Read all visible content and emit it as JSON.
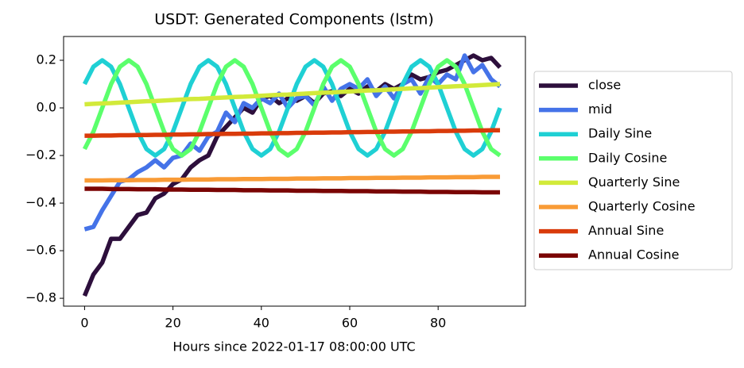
{
  "chart_data": {
    "type": "line",
    "title": "USDT: Generated Components (lstm)",
    "x_label": "Hours since 2022-01-17 08:00:00 UTC",
    "x": [
      0,
      2,
      4,
      6,
      8,
      10,
      12,
      14,
      16,
      18,
      20,
      22,
      24,
      26,
      28,
      30,
      32,
      34,
      36,
      38,
      40,
      42,
      44,
      46,
      48,
      50,
      52,
      54,
      56,
      58,
      60,
      62,
      64,
      66,
      68,
      70,
      72,
      74,
      76,
      78,
      80,
      82,
      84,
      86,
      88,
      90,
      92,
      94
    ],
    "xlim": [
      -4.75,
      99.75
    ],
    "xticks": [
      0,
      20,
      40,
      60,
      80
    ],
    "ylim": [
      -0.833,
      0.3
    ],
    "yticks": [
      {
        "value": -0.8,
        "label": "−0.8"
      },
      {
        "value": -0.6,
        "label": "−0.6"
      },
      {
        "value": -0.4,
        "label": "−0.4"
      },
      {
        "value": -0.2,
        "label": "−0.2"
      },
      {
        "value": 0,
        "label": "0.0"
      },
      0.2
    ],
    "legend": "outside-right",
    "series": [
      {
        "name": "close",
        "color": "#2d0f3c",
        "values": [
          -0.79,
          -0.7,
          -0.65,
          -0.55,
          -0.55,
          -0.5,
          -0.45,
          -0.44,
          -0.38,
          -0.36,
          -0.32,
          -0.3,
          -0.25,
          -0.22,
          -0.2,
          -0.12,
          -0.08,
          -0.04,
          0.0,
          -0.02,
          0.04,
          0.05,
          0.02,
          0.04,
          0.03,
          0.05,
          0.02,
          0.06,
          0.07,
          0.05,
          0.08,
          0.06,
          0.09,
          0.07,
          0.1,
          0.08,
          0.1,
          0.14,
          0.12,
          0.13,
          0.15,
          0.16,
          0.18,
          0.2,
          0.22,
          0.2,
          0.21,
          0.17
        ]
      },
      {
        "name": "mid",
        "color": "#4573e8",
        "values": [
          -0.51,
          -0.5,
          -0.43,
          -0.37,
          -0.31,
          -0.3,
          -0.27,
          -0.25,
          -0.22,
          -0.25,
          -0.21,
          -0.2,
          -0.15,
          -0.18,
          -0.12,
          -0.1,
          -0.02,
          -0.06,
          0.02,
          0.0,
          0.04,
          0.02,
          0.06,
          0.0,
          0.04,
          0.05,
          0.01,
          0.09,
          0.03,
          0.08,
          0.1,
          0.08,
          0.12,
          0.05,
          0.09,
          0.04,
          0.1,
          0.12,
          0.06,
          0.13,
          0.1,
          0.14,
          0.12,
          0.22,
          0.15,
          0.18,
          0.12,
          0.09
        ]
      },
      {
        "name": "Daily Sine",
        "color": "#1fd0d4",
        "values": [
          0.1,
          0.173,
          0.2,
          0.173,
          0.1,
          0,
          -0.1,
          -0.173,
          -0.2,
          -0.173,
          -0.1,
          0,
          0.1,
          0.173,
          0.2,
          0.173,
          0.1,
          0,
          -0.1,
          -0.173,
          -0.2,
          -0.173,
          -0.1,
          0,
          0.1,
          0.173,
          0.2,
          0.173,
          0.1,
          0,
          -0.1,
          -0.173,
          -0.2,
          -0.173,
          -0.1,
          0,
          0.1,
          0.173,
          0.2,
          0.173,
          0.1,
          0,
          -0.1,
          -0.173,
          -0.2,
          -0.173,
          -0.1,
          0
        ]
      },
      {
        "name": "Daily Cosine",
        "color": "#5bff6c",
        "values": [
          -0.173,
          -0.1,
          0,
          0.1,
          0.173,
          0.2,
          0.173,
          0.1,
          0,
          -0.1,
          -0.173,
          -0.2,
          -0.173,
          -0.1,
          0,
          0.1,
          0.173,
          0.2,
          0.173,
          0.1,
          0,
          -0.1,
          -0.173,
          -0.2,
          -0.173,
          -0.1,
          0,
          0.1,
          0.173,
          0.2,
          0.173,
          0.1,
          0,
          -0.1,
          -0.173,
          -0.2,
          -0.173,
          -0.1,
          0,
          0.1,
          0.173,
          0.2,
          0.173,
          0.1,
          0,
          -0.1,
          -0.173,
          -0.2
        ]
      },
      {
        "name": "Quarterly Sine",
        "color": "#d2ea3a",
        "values": [
          0.015,
          0.017,
          0.019,
          0.02,
          0.022,
          0.024,
          0.026,
          0.028,
          0.029,
          0.031,
          0.033,
          0.035,
          0.037,
          0.038,
          0.04,
          0.042,
          0.044,
          0.046,
          0.047,
          0.049,
          0.051,
          0.053,
          0.055,
          0.056,
          0.058,
          0.06,
          0.062,
          0.064,
          0.065,
          0.067,
          0.069,
          0.071,
          0.073,
          0.074,
          0.076,
          0.078,
          0.08,
          0.082,
          0.083,
          0.085,
          0.087,
          0.089,
          0.091,
          0.092,
          0.094,
          0.096,
          0.098,
          0.1
        ]
      },
      {
        "name": "Quarterly Cosine",
        "color": "#f99b36",
        "values": [
          -0.305,
          -0.305,
          -0.305,
          -0.304,
          -0.304,
          -0.304,
          -0.303,
          -0.303,
          -0.303,
          -0.302,
          -0.302,
          -0.302,
          -0.301,
          -0.301,
          -0.301,
          -0.3,
          -0.3,
          -0.3,
          -0.299,
          -0.299,
          -0.299,
          -0.298,
          -0.298,
          -0.298,
          -0.297,
          -0.297,
          -0.297,
          -0.296,
          -0.296,
          -0.296,
          -0.295,
          -0.295,
          -0.295,
          -0.294,
          -0.294,
          -0.294,
          -0.293,
          -0.293,
          -0.293,
          -0.292,
          -0.292,
          -0.292,
          -0.291,
          -0.291,
          -0.291,
          -0.29,
          -0.29,
          -0.29
        ]
      },
      {
        "name": "Annual Sine",
        "color": "#d93b0b",
        "values": [
          -0.117,
          -0.117,
          -0.116,
          -0.116,
          -0.115,
          -0.115,
          -0.114,
          -0.114,
          -0.113,
          -0.113,
          -0.112,
          -0.112,
          -0.111,
          -0.111,
          -0.11,
          -0.11,
          -0.109,
          -0.109,
          -0.108,
          -0.108,
          -0.107,
          -0.107,
          -0.106,
          -0.106,
          -0.105,
          -0.105,
          -0.104,
          -0.104,
          -0.103,
          -0.103,
          -0.102,
          -0.102,
          -0.101,
          -0.101,
          -0.1,
          -0.1,
          -0.099,
          -0.099,
          -0.098,
          -0.098,
          -0.097,
          -0.097,
          -0.096,
          -0.096,
          -0.095,
          -0.095,
          -0.094,
          -0.094
        ]
      },
      {
        "name": "Annual Cosine",
        "color": "#7a0403",
        "values": [
          -0.34,
          -0.34,
          -0.34,
          -0.341,
          -0.341,
          -0.341,
          -0.342,
          -0.342,
          -0.342,
          -0.343,
          -0.343,
          -0.343,
          -0.344,
          -0.344,
          -0.344,
          -0.345,
          -0.345,
          -0.345,
          -0.346,
          -0.346,
          -0.346,
          -0.347,
          -0.347,
          -0.347,
          -0.348,
          -0.348,
          -0.348,
          -0.349,
          -0.349,
          -0.349,
          -0.35,
          -0.35,
          -0.35,
          -0.351,
          -0.351,
          -0.351,
          -0.352,
          -0.352,
          -0.352,
          -0.353,
          -0.353,
          -0.353,
          -0.354,
          -0.354,
          -0.354,
          -0.355,
          -0.355,
          -0.355
        ]
      }
    ]
  }
}
